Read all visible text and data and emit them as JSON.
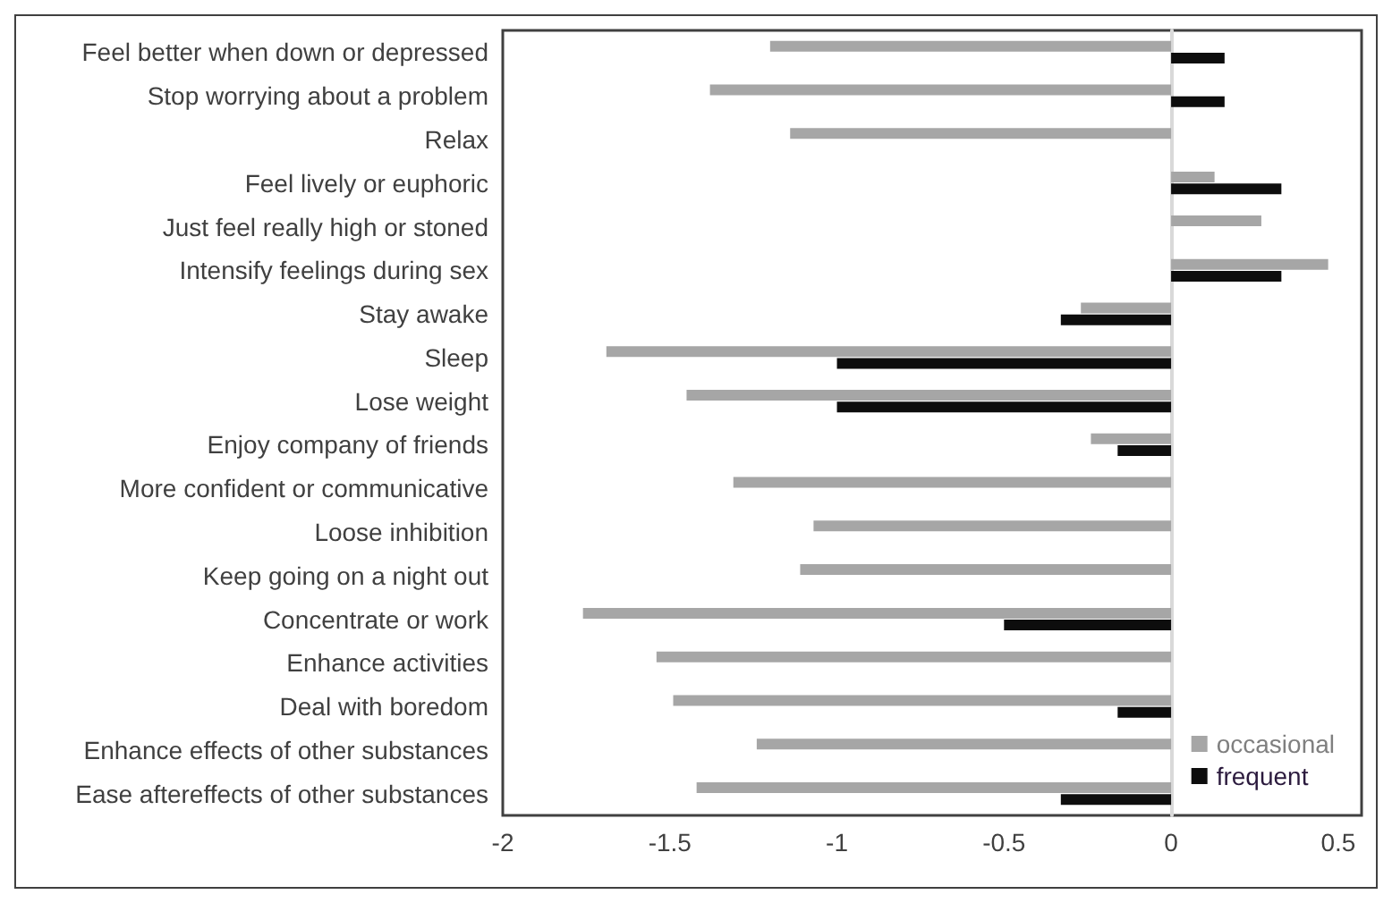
{
  "chart_data": {
    "type": "bar",
    "orientation": "horizontal",
    "categories": [
      "Feel better when down or depressed",
      "Stop worrying about a problem",
      "Relax",
      "Feel lively or euphoric",
      "Just feel really high or stoned",
      "Intensify feelings during sex",
      "Stay awake",
      "Sleep",
      "Lose weight",
      "Enjoy company of friends",
      "More confident or communicative",
      "Loose inhibition",
      "Keep going on a night out",
      "Concentrate or work",
      "Enhance activities",
      "Deal with boredom",
      "Enhance effects of other substances",
      "Ease aftereffects of other substances"
    ],
    "series": [
      {
        "name": "occasional",
        "color": "#a6a6a6",
        "values": [
          -1.2,
          -1.38,
          -1.14,
          0.13,
          0.27,
          0.47,
          -0.27,
          -1.69,
          -1.45,
          -0.24,
          -1.31,
          -1.07,
          -1.11,
          -1.76,
          -1.54,
          -1.49,
          -1.24,
          -1.42
        ]
      },
      {
        "name": "frequent",
        "color": "#0d0d0d",
        "values": [
          0.16,
          0.16,
          null,
          0.33,
          null,
          0.33,
          -0.33,
          -1.0,
          -1.0,
          -0.16,
          null,
          null,
          null,
          -0.5,
          null,
          -0.16,
          null,
          -0.33
        ]
      }
    ],
    "xlim": [
      -2,
      0.57
    ],
    "xticks": [
      -2,
      -1.5,
      -1,
      -0.5,
      0,
      0.5
    ],
    "legend": "bottom right"
  }
}
